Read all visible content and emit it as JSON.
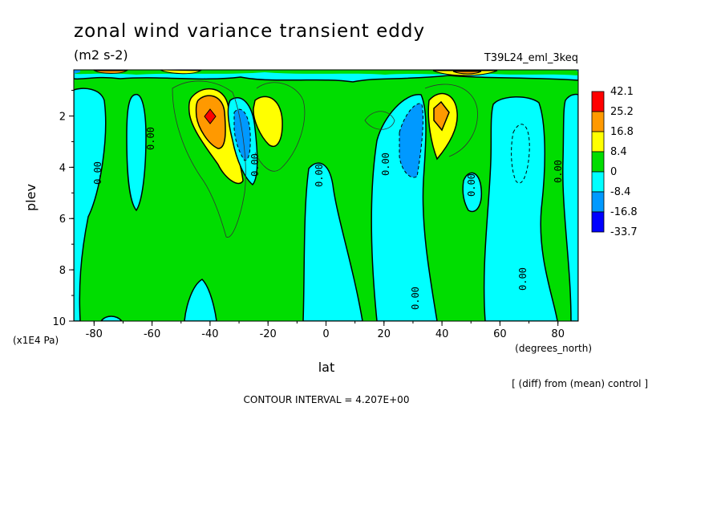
{
  "chart_data": {
    "type": "heatmap",
    "title": "zonal wind variance transient eddy",
    "subtitle": "(m2 s-2)",
    "run_label": "T39L24_eml_3keq",
    "xlabel": "lat",
    "x_units": "(degrees_north)",
    "ylabel": "plev",
    "y_units": "(x1E4 Pa)",
    "xlim": [
      -87,
      87
    ],
    "ylim": [
      10,
      0.2
    ],
    "x_ticks": [
      -80,
      -60,
      -40,
      -20,
      0,
      20,
      40,
      60,
      80
    ],
    "x_tick_labels": [
      "-80",
      "-60",
      "-40",
      "-20",
      "0",
      "20",
      "40",
      "60",
      "80"
    ],
    "y_ticks": [
      2,
      4,
      6,
      8,
      10
    ],
    "y_tick_labels": [
      "2",
      "4",
      "6",
      "8",
      "10"
    ],
    "colorbar": {
      "labels": [
        "42.1",
        "25.2",
        "16.8",
        "8.4",
        "0",
        "-8.4",
        "-16.8",
        "-33.7"
      ],
      "colors": [
        "#ff0000",
        "#ff9900",
        "#ffff00",
        "#00dd00",
        "#00ffff",
        "#0099ff",
        "#0000ff"
      ]
    },
    "contour_label": "0.00",
    "contour_interval_text": "CONTOUR INTERVAL = 4.207E+00",
    "note": "[ (diff) from (mean) control ]",
    "features": [
      {
        "lat": -40,
        "plev": 2.0,
        "value": 42.1
      },
      {
        "lat": -31,
        "plev": 2.6,
        "value": -16.8
      },
      {
        "lat": -20,
        "plev": 2.0,
        "value": 16.8
      },
      {
        "lat": 30,
        "plev": 2.6,
        "value": -16.8
      },
      {
        "lat": 40,
        "plev": 2.0,
        "value": 25.2
      }
    ]
  }
}
